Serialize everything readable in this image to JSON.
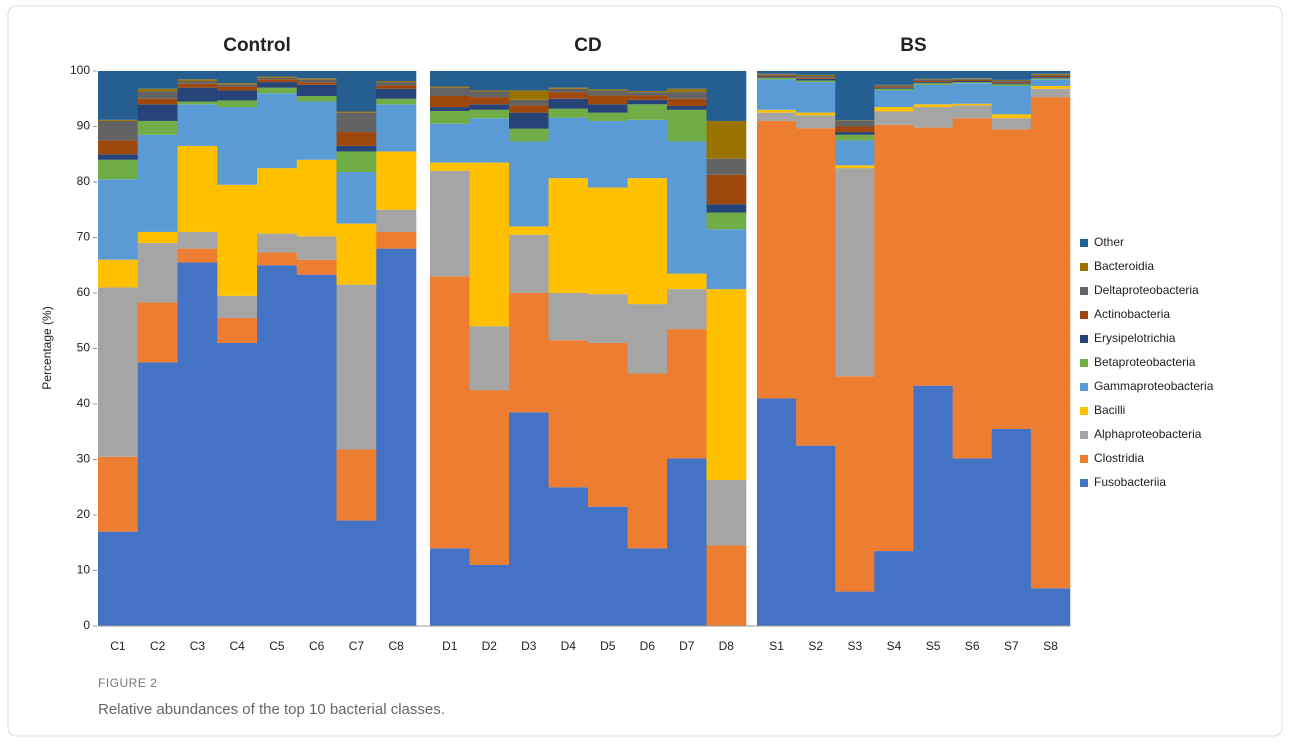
{
  "chart_data": {
    "type": "stacked-bar",
    "ylabel": "Percentage (%)",
    "ylim": [
      0,
      100
    ],
    "yticks": [
      0,
      10,
      20,
      30,
      40,
      50,
      60,
      70,
      80,
      90,
      100
    ],
    "panels": [
      {
        "title": "Control",
        "categories": [
          "C1",
          "C2",
          "C3",
          "C4",
          "C5",
          "C6",
          "C7",
          "C8"
        ]
      },
      {
        "title": "CD",
        "categories": [
          "D1",
          "D2",
          "D3",
          "D4",
          "D5",
          "D6",
          "D7",
          "D8"
        ]
      },
      {
        "title": "BS",
        "categories": [
          "S1",
          "S2",
          "S3",
          "S4",
          "S5",
          "S6",
          "S7",
          "S8"
        ]
      }
    ],
    "series": [
      {
        "name": "Fusobacteriia",
        "color": "#4472c4",
        "values": [
          [
            17,
            47.5,
            65.5,
            51,
            65,
            63.3,
            19,
            68
          ],
          [
            14,
            11,
            38.5,
            25,
            21.5,
            14,
            30.2,
            0
          ],
          [
            41,
            32.5,
            6.2,
            13.5,
            43.3,
            30.2,
            35.5,
            6.8
          ]
        ]
      },
      {
        "name": "Clostridia",
        "color": "#ed7d31",
        "values": [
          [
            13.5,
            10.8,
            2.5,
            4.5,
            2.3,
            2.7,
            12.8,
            3
          ],
          [
            49,
            31.5,
            21.5,
            26.5,
            29.5,
            31.5,
            23.3,
            14.5
          ],
          [
            50,
            57.2,
            38.8,
            76.8,
            46.5,
            61.3,
            54,
            88.5
          ]
        ]
      },
      {
        "name": "Alphaproteobacteria",
        "color": "#a5a5a5",
        "values": [
          [
            30.5,
            10.7,
            3,
            4,
            3.4,
            4.2,
            29.7,
            4
          ],
          [
            19,
            11.5,
            10.5,
            8.5,
            8.8,
            12.5,
            7.2,
            11.8
          ],
          [
            1.5,
            2.3,
            37.5,
            2.4,
            3.7,
            2.3,
            2,
            1.5
          ]
        ]
      },
      {
        "name": "Bacilli",
        "color": "#ffc000",
        "values": [
          [
            5,
            2,
            15.5,
            20,
            11.8,
            13.8,
            11,
            10.5
          ],
          [
            1.5,
            29.5,
            1.5,
            20.7,
            19.2,
            22.7,
            2.8,
            34.4
          ],
          [
            0.5,
            0.5,
            0.5,
            0.8,
            0.5,
            0.3,
            0.7,
            0.5
          ]
        ]
      },
      {
        "name": "Gammaproteobacteria",
        "color": "#5b9bd5",
        "values": [
          [
            14.5,
            17.5,
            7.5,
            14,
            13.5,
            10.5,
            9.3,
            8.5
          ],
          [
            7,
            8,
            15.3,
            10.9,
            12,
            10.5,
            23.8,
            10.8
          ],
          [
            5.5,
            5.5,
            4.5,
            3,
            3.5,
            3.7,
            5.1,
            1.2
          ]
        ]
      },
      {
        "name": "Betaproteobacteria",
        "color": "#70ad47",
        "values": [
          [
            3.5,
            2.5,
            0.5,
            1.2,
            1,
            1,
            3.7,
            1
          ],
          [
            2.3,
            1.5,
            2.3,
            1.6,
            1.5,
            2.8,
            5.7,
            3
          ],
          [
            0.3,
            0.3,
            1,
            0.3,
            0.3,
            0.2,
            0.3,
            0.2
          ]
        ]
      },
      {
        "name": "Erysipelotrichia",
        "color": "#264478",
        "values": [
          [
            1,
            3,
            2.5,
            1.8,
            1,
            2,
            1,
            1.8
          ],
          [
            0.7,
            1,
            2.9,
            1.8,
            1.5,
            0.8,
            0.7,
            1.5
          ],
          [
            0.2,
            0.3,
            0.5,
            0.2,
            0.2,
            0.2,
            0.2,
            0.2
          ]
        ]
      },
      {
        "name": "Actinobacteria",
        "color": "#9e480e",
        "values": [
          [
            2.5,
            1,
            0.7,
            0.7,
            0.5,
            0.5,
            2.5,
            0.6
          ],
          [
            2,
            1.3,
            1.3,
            1.2,
            1.6,
            0.8,
            1.3,
            5.3
          ],
          [
            0.2,
            0.2,
            1,
            0.2,
            0.2,
            0.2,
            0.2,
            0.2
          ]
        ]
      },
      {
        "name": "Deltaproteobacteria",
        "color": "#636363",
        "values": [
          [
            3.5,
            1.3,
            0.5,
            0.4,
            0.3,
            0.5,
            3.5,
            0.6
          ],
          [
            1.5,
            1,
            1,
            0.6,
            0.9,
            0.6,
            1.2,
            2.9
          ],
          [
            0.2,
            0.3,
            1,
            0.2,
            0.3,
            0.2,
            0.3,
            0.2
          ]
        ]
      },
      {
        "name": "Bacteroidia",
        "color": "#997300",
        "values": [
          [
            0.2,
            0.5,
            0.3,
            0.2,
            0.2,
            0.2,
            0.2,
            0.2
          ],
          [
            0.2,
            0.2,
            1.7,
            0.2,
            0.2,
            0.2,
            0.6,
            6.8
          ],
          [
            0.1,
            0.2,
            0.1,
            0.1,
            0.1,
            0.1,
            0.1,
            0.2
          ]
        ]
      },
      {
        "name": "Other",
        "color": "#255e91",
        "values": [
          [
            8.8,
            3.2,
            1.5,
            2.2,
            1,
            1.3,
            7.3,
            1.8
          ],
          [
            2.8,
            3.5,
            3.5,
            3,
            3.3,
            3.6,
            3.2,
            9
          ],
          [
            0.5,
            0.7,
            8.9,
            2.5,
            1.4,
            1.3,
            1.6,
            0.5
          ]
        ]
      }
    ]
  },
  "figure": {
    "label": "FIGURE 2",
    "caption": "Relative abundances of the top 10 bacterial classes."
  }
}
